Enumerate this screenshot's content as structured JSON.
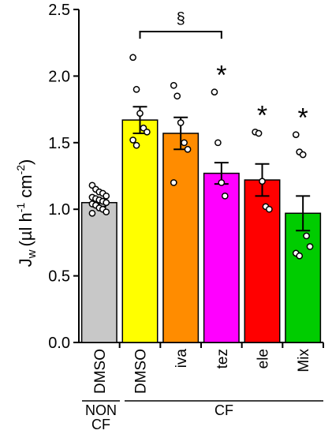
{
  "chart_data": {
    "type": "bar",
    "ylabel_main": "J",
    "ylabel_sub": "w",
    "ylabel_unit_open": "(µl h",
    "ylabel_exp1": "-1",
    "ylabel_mid": " cm",
    "ylabel_exp2": "-2",
    "ylabel_close": ")",
    "ylim": [
      0,
      2.5
    ],
    "yticks": [
      "0.0",
      "0.5",
      "1.0",
      "1.5",
      "2.0",
      "2.5"
    ],
    "ytick_values": [
      0,
      0.5,
      1.0,
      1.5,
      2.0,
      2.5
    ],
    "categories": [
      "DMSO",
      "DMSO",
      "iva",
      "tez",
      "ele",
      "Mix"
    ],
    "values": [
      1.05,
      1.67,
      1.57,
      1.27,
      1.22,
      0.97
    ],
    "errors": [
      0.03,
      0.1,
      0.12,
      0.08,
      0.12,
      0.13
    ],
    "colors": [
      "#c8c8c8",
      "#ffff00",
      "#ff8c00",
      "#ff00ff",
      "#ff0000",
      "#00cc00"
    ],
    "points": [
      [
        1.18,
        1.15,
        1.13,
        1.12,
        1.1,
        1.09,
        1.08,
        1.07,
        1.06,
        1.05,
        1.04,
        1.03,
        1.01,
        1.0,
        0.98,
        0.97
      ],
      [
        2.14,
        1.9,
        1.72,
        1.61,
        1.58,
        1.52,
        1.48
      ],
      [
        1.93,
        1.85,
        1.65,
        1.5,
        1.45,
        1.2
      ],
      [
        1.88,
        1.5,
        1.2,
        1.1
      ],
      [
        1.58,
        1.57,
        1.21,
        1.02,
        1.0
      ],
      [
        1.56,
        1.43,
        1.41,
        0.8,
        0.72,
        0.67,
        0.65
      ]
    ],
    "significance": [
      "",
      "",
      "",
      "*",
      "*",
      "*"
    ],
    "bracket_label": "§",
    "group_labels": {
      "non_cf_line1": "NON",
      "non_cf_line2": "CF",
      "cf": "CF"
    }
  }
}
